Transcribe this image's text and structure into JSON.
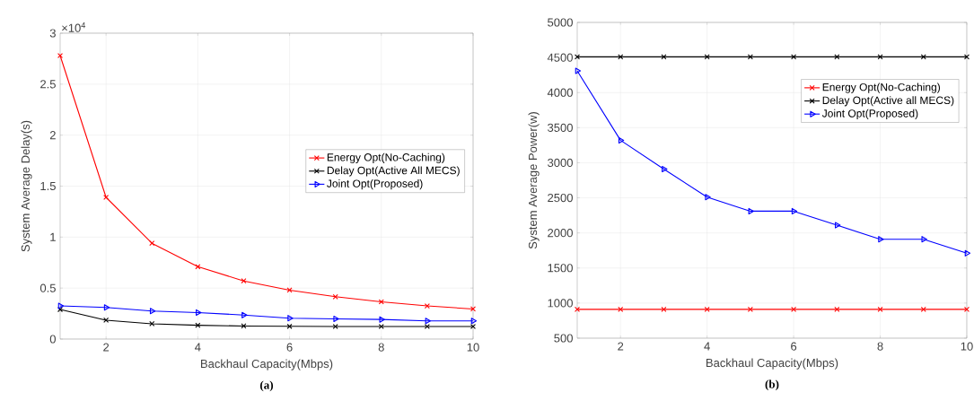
{
  "chart_data": [
    {
      "type": "line",
      "title": "(a)",
      "xlabel": "Backhaul Capacity(Mbps)",
      "ylabel": "System Average Delay(s)",
      "annotations": [
        "×10$^{4}$"
      ],
      "x": [
        1,
        2,
        3,
        4,
        5,
        6,
        7,
        8,
        9,
        10
      ],
      "xlim": [
        1,
        10
      ],
      "xticks": [
        2,
        4,
        6,
        8,
        10
      ],
      "ylim": [
        0,
        3
      ],
      "yticks": [
        0,
        0.5,
        1,
        1.5,
        2,
        2.5,
        3
      ],
      "grid": true,
      "legend": "right",
      "series": [
        {
          "name": "Energy Opt(No-Caching)",
          "color": "#ff0000",
          "marker": "cross",
          "values": [
            2.78,
            1.39,
            0.94,
            0.71,
            0.57,
            0.48,
            0.415,
            0.365,
            0.325,
            0.295
          ]
        },
        {
          "name": "Delay Opt(Active All MECS)",
          "color": "#000000",
          "marker": "cross",
          "values": [
            0.29,
            0.185,
            0.15,
            0.135,
            0.128,
            0.125,
            0.123,
            0.123,
            0.123,
            0.123
          ]
        },
        {
          "name": "Joint Opt(Proposed)",
          "color": "#0000ff",
          "marker": "triangle",
          "values": [
            0.325,
            0.31,
            0.275,
            0.26,
            0.235,
            0.205,
            0.198,
            0.192,
            0.178,
            0.178
          ]
        }
      ]
    },
    {
      "type": "line",
      "title": "(b)",
      "xlabel": "Backhaul Capacity(Mbps)",
      "ylabel": "System Average Power(w)",
      "x": [
        1,
        2,
        3,
        4,
        5,
        6,
        7,
        8,
        9,
        10
      ],
      "xlim": [
        1,
        10
      ],
      "xticks": [
        2,
        4,
        6,
        8,
        10
      ],
      "ylim": [
        500,
        5000
      ],
      "yticks": [
        500,
        1000,
        1500,
        2000,
        2500,
        3000,
        3500,
        4000,
        4500,
        5000
      ],
      "grid": true,
      "legend": "top right",
      "series": [
        {
          "name": "Energy Opt(No-Caching)",
          "color": "#ff0000",
          "marker": "cross",
          "values": [
            910,
            910,
            910,
            910,
            910,
            910,
            910,
            910,
            910,
            910
          ]
        },
        {
          "name": "Delay Opt(Active all MECS)",
          "color": "#000000",
          "marker": "cross",
          "values": [
            4510,
            4510,
            4510,
            4510,
            4510,
            4510,
            4510,
            4510,
            4510,
            4510
          ]
        },
        {
          "name": "Joint Opt(Proposed)",
          "color": "#0000ff",
          "marker": "triangle",
          "values": [
            4310,
            3320,
            2910,
            2510,
            2310,
            2310,
            2110,
            1910,
            1910,
            1710
          ]
        }
      ]
    }
  ]
}
